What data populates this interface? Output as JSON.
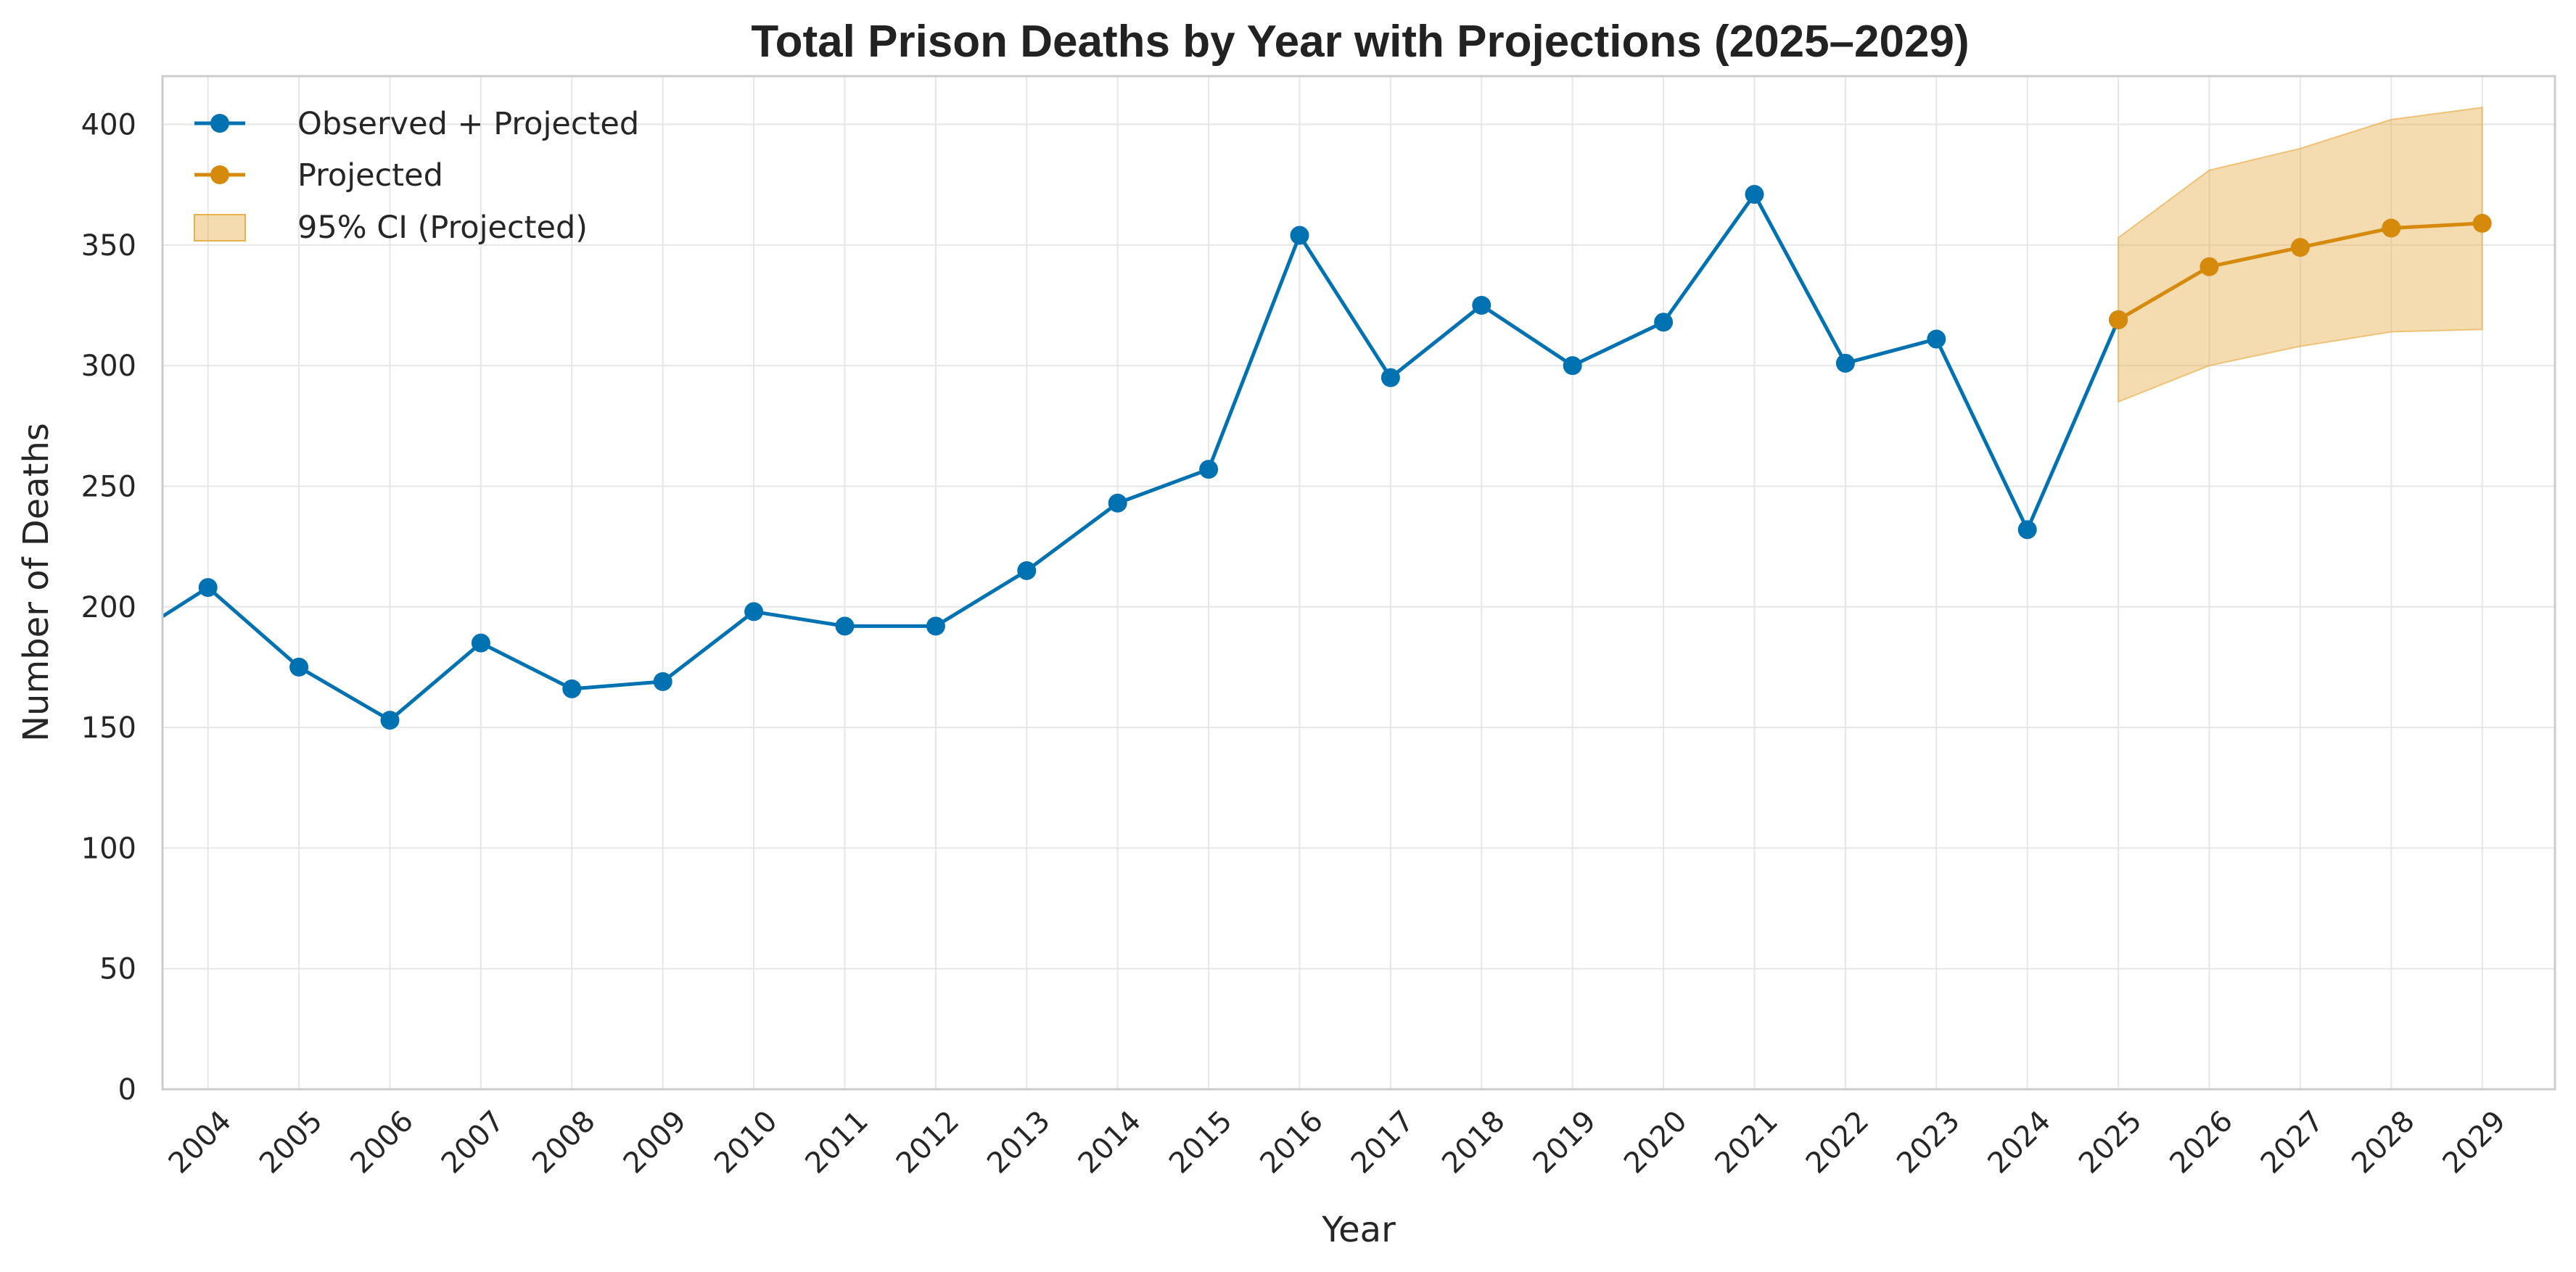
{
  "chart_data": {
    "type": "line",
    "title": "Total Prison Deaths by Year with Projections (2025–2029)",
    "xlabel": "Year",
    "ylabel": "Number of Deaths",
    "x": [
      2004,
      2005,
      2006,
      2007,
      2008,
      2009,
      2010,
      2011,
      2012,
      2013,
      2014,
      2015,
      2016,
      2017,
      2018,
      2019,
      2020,
      2021,
      2022,
      2023,
      2024,
      2025,
      2026,
      2027,
      2028,
      2029
    ],
    "xlim": [
      2003.5,
      2029.8
    ],
    "ylim": [
      0,
      420
    ],
    "yticks": [
      0,
      50,
      100,
      150,
      200,
      250,
      300,
      350,
      400
    ],
    "grid": true,
    "legend_position": "top-left",
    "series": [
      {
        "name": "Observed + Projected",
        "color": "#0072b2",
        "x": [
          2003.5,
          2004,
          2005,
          2006,
          2007,
          2008,
          2009,
          2010,
          2011,
          2012,
          2013,
          2014,
          2015,
          2016,
          2017,
          2018,
          2019,
          2020,
          2021,
          2022,
          2023,
          2024,
          2025
        ],
        "values": [
          196,
          208,
          175,
          153,
          185,
          166,
          169,
          198,
          192,
          192,
          215,
          243,
          257,
          354,
          295,
          325,
          300,
          318,
          371,
          301,
          311,
          232,
          319
        ],
        "markers_from_index": 1
      },
      {
        "name": "Projected",
        "color": "#d68a0c",
        "x": [
          2025,
          2026,
          2027,
          2028,
          2029
        ],
        "values": [
          319,
          341,
          349,
          357,
          359
        ],
        "markers_from_index": 0
      }
    ],
    "confidence_band": {
      "name": "95% CI (Projected)",
      "color": "#e8b04f",
      "x": [
        2025,
        2026,
        2027,
        2028,
        2029
      ],
      "lower": [
        285,
        300,
        308,
        314,
        315
      ],
      "upper": [
        353,
        381,
        390,
        402,
        407
      ]
    }
  }
}
